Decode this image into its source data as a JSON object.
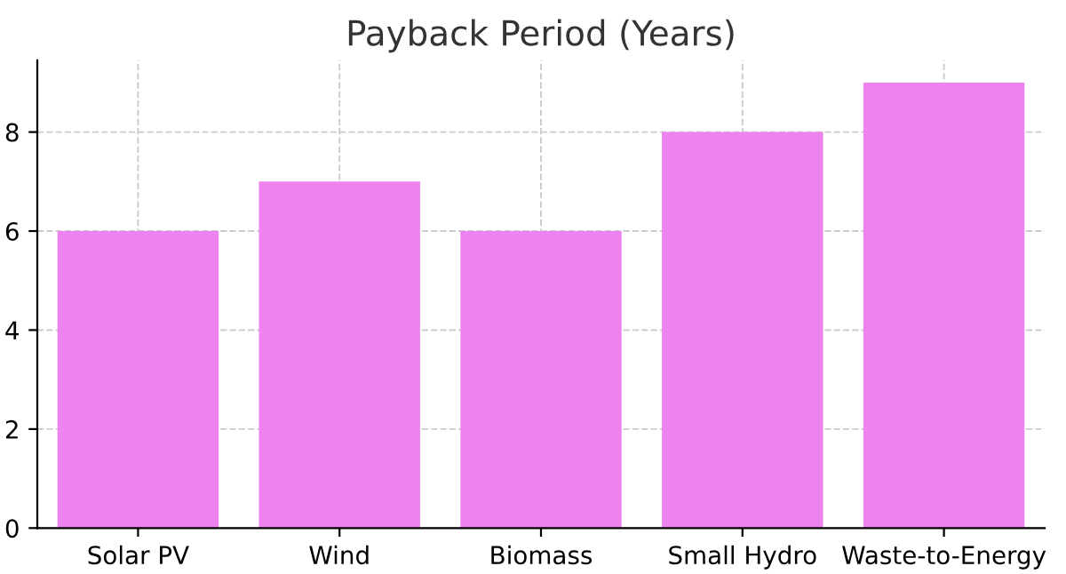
{
  "chart_data": {
    "type": "bar",
    "title": "Payback Period (Years)",
    "categories": [
      "Solar PV",
      "Wind",
      "Biomass",
      "Small Hydro",
      "Waste-to-Energy"
    ],
    "values": [
      6,
      7,
      6,
      8,
      9
    ],
    "color": "#ee82ee",
    "ylim": [
      0,
      9.45
    ],
    "yticks": [
      0,
      2,
      4,
      6,
      8
    ],
    "grid": true
  }
}
